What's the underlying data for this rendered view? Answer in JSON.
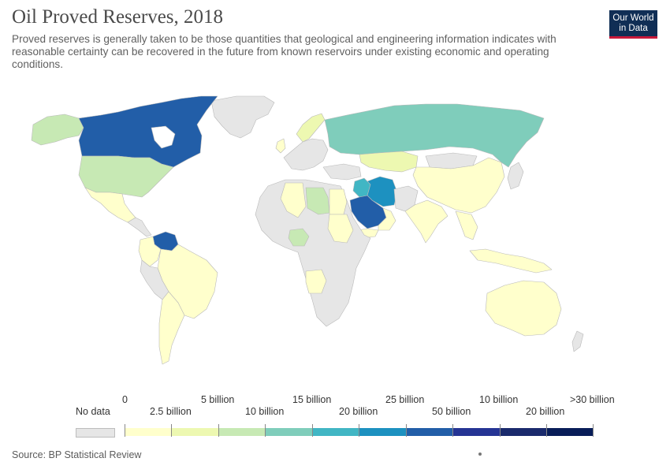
{
  "header": {
    "title": "Oil Proved Reserves, 2018",
    "subtitle": "Proved reserves is generally taken to be those quantities that geological and engineering information indicates with reasonable certainty can be recovered in the future from known reservoirs under existing economic and operating conditions.",
    "logo_line1": "Our World",
    "logo_line2": "in Data"
  },
  "legend": {
    "no_data_label": "No data",
    "no_data_color": "#e6e6e6",
    "labels_top": [
      "0",
      "5 billion",
      "15 billion",
      "25 billion",
      "10 billion",
      ">30 billion"
    ],
    "labels_bottom": [
      "2.5 billion",
      "10 billion",
      "20 billion",
      "50 billion",
      "20 billion"
    ],
    "colors": [
      "#ffffcc",
      "#edf8b1",
      "#c7e9b4",
      "#7fcdbb",
      "#41b6c4",
      "#1d91c0",
      "#225ea8",
      "#253494",
      "#1a2a6c",
      "#081d58"
    ]
  },
  "map": {
    "countries": [
      {
        "name": "Canada",
        "color": "#225ea8"
      },
      {
        "name": "United States",
        "color": "#c7e9b4"
      },
      {
        "name": "Alaska",
        "color": "#c7e9b4"
      },
      {
        "name": "Mexico",
        "color": "#ffffcc"
      },
      {
        "name": "Venezuela",
        "color": "#225ea8"
      },
      {
        "name": "Brazil",
        "color": "#ffffcc"
      },
      {
        "name": "Russia",
        "color": "#7fcdbb"
      },
      {
        "name": "Kazakhstan",
        "color": "#edf8b1"
      },
      {
        "name": "China",
        "color": "#ffffcc"
      },
      {
        "name": "Saudi Arabia",
        "color": "#225ea8"
      },
      {
        "name": "Iran",
        "color": "#1d91c0"
      },
      {
        "name": "Iraq",
        "color": "#41b6c4"
      },
      {
        "name": "Kuwait / UAE",
        "color": "#1d91c0"
      },
      {
        "name": "Libya",
        "color": "#c7e9b4"
      },
      {
        "name": "Nigeria",
        "color": "#c7e9b4"
      },
      {
        "name": "Australia",
        "color": "#ffffcc"
      },
      {
        "name": "India",
        "color": "#ffffcc"
      },
      {
        "name": "Greenland",
        "color": "#e6e6e6"
      }
    ]
  },
  "footer": {
    "source": "Source: BP Statistical Review"
  }
}
